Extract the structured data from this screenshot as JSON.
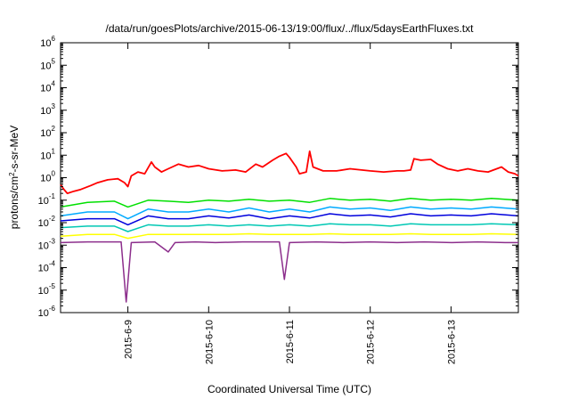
{
  "chart_data": {
    "type": "line",
    "title": "/data/run/goesPlots/archive/2015-06-13/19:00/flux/../flux/5daysEarthFluxes.txt",
    "xlabel": "Coordinated Universal Time (UTC)",
    "ylabel": {
      "prefix": "protons/cm",
      "sup": "2",
      "suffix": "-s-sr-MeV"
    },
    "xlim": [
      "2015-06-08 04:00",
      "2015-06-13 20:00"
    ],
    "x_ticks": [
      "2015-6-9",
      "2015-6-10",
      "2015-6-11",
      "2015-6-12",
      "2015-6-13"
    ],
    "yscale": "log",
    "ylim": [
      1e-06,
      1000000.0
    ],
    "y_ticks": [
      {
        "base": "10",
        "exp": "-6"
      },
      {
        "base": "10",
        "exp": "-5"
      },
      {
        "base": "10",
        "exp": "-4"
      },
      {
        "base": "10",
        "exp": "-3"
      },
      {
        "base": "10",
        "exp": "-2"
      },
      {
        "base": "10",
        "exp": "-1"
      },
      {
        "base": "10",
        "exp": "0"
      },
      {
        "base": "10",
        "exp": "1"
      },
      {
        "base": "10",
        "exp": "2"
      },
      {
        "base": "10",
        "exp": "3"
      },
      {
        "base": "10",
        "exp": "4"
      },
      {
        "base": "10",
        "exp": "5"
      },
      {
        "base": "10",
        "exp": "6"
      }
    ],
    "grid": false,
    "legend": "none",
    "series": [
      {
        "color": "#ff0000",
        "data": [
          [
            "2015-06-08 04:00",
            0.5
          ],
          [
            "2015-06-08 05:00",
            0.3
          ],
          [
            "2015-06-08 06:00",
            0.2
          ],
          [
            "2015-06-08 08:00",
            0.25
          ],
          [
            "2015-06-08 10:00",
            0.3
          ],
          [
            "2015-06-08 13:00",
            0.45
          ],
          [
            "2015-06-08 15:00",
            0.6
          ],
          [
            "2015-06-08 18:00",
            0.8
          ],
          [
            "2015-06-08 21:00",
            0.9
          ],
          [
            "2015-06-08 23:00",
            0.6
          ],
          [
            "2015-06-09 00:00",
            0.4
          ],
          [
            "2015-06-09 01:00",
            1.2
          ],
          [
            "2015-06-09 03:00",
            1.8
          ],
          [
            "2015-06-09 05:00",
            1.5
          ],
          [
            "2015-06-09 07:00",
            5.0
          ],
          [
            "2015-06-09 08:00",
            3.0
          ],
          [
            "2015-06-09 10:00",
            1.8
          ],
          [
            "2015-06-09 12:00",
            2.5
          ],
          [
            "2015-06-09 15:00",
            4.0
          ],
          [
            "2015-06-09 18:00",
            3.0
          ],
          [
            "2015-06-09 21:00",
            3.5
          ],
          [
            "2015-06-10 00:00",
            2.5
          ],
          [
            "2015-06-10 04:00",
            2.0
          ],
          [
            "2015-06-10 08:00",
            2.2
          ],
          [
            "2015-06-10 11:00",
            1.8
          ],
          [
            "2015-06-10 14:00",
            4.0
          ],
          [
            "2015-06-10 16:00",
            3.0
          ],
          [
            "2015-06-10 19:00",
            6.0
          ],
          [
            "2015-06-10 21:00",
            9.0
          ],
          [
            "2015-06-10 23:00",
            12.0
          ],
          [
            "2015-06-11 00:00",
            8.0
          ],
          [
            "2015-06-11 02:00",
            3.0
          ],
          [
            "2015-06-11 03:00",
            1.5
          ],
          [
            "2015-06-11 05:00",
            1.8
          ],
          [
            "2015-06-11 06:00",
            15.0
          ],
          [
            "2015-06-11 07:00",
            3.0
          ],
          [
            "2015-06-11 10:00",
            2.0
          ],
          [
            "2015-06-11 14:00",
            2.0
          ],
          [
            "2015-06-11 18:00",
            2.5
          ],
          [
            "2015-06-12 00:00",
            2.0
          ],
          [
            "2015-06-12 04:00",
            1.8
          ],
          [
            "2015-06-12 08:00",
            2.0
          ],
          [
            "2015-06-12 10:00",
            2.0
          ],
          [
            "2015-06-12 12:00",
            2.2
          ],
          [
            "2015-06-12 13:00",
            7.0
          ],
          [
            "2015-06-12 15:00",
            6.0
          ],
          [
            "2015-06-12 18:00",
            6.5
          ],
          [
            "2015-06-12 20:00",
            4.0
          ],
          [
            "2015-06-12 23:00",
            2.5
          ],
          [
            "2015-06-13 02:00",
            2.0
          ],
          [
            "2015-06-13 05:00",
            2.5
          ],
          [
            "2015-06-13 08:00",
            2.0
          ],
          [
            "2015-06-13 11:00",
            1.8
          ],
          [
            "2015-06-13 15:00",
            3.0
          ],
          [
            "2015-06-13 17:00",
            1.8
          ],
          [
            "2015-06-13 19:00",
            1.5
          ],
          [
            "2015-06-13 20:00",
            1.2
          ]
        ]
      },
      {
        "color": "#00e000",
        "data": [
          [
            "2015-06-08 04:00",
            0.05
          ],
          [
            "2015-06-08 12:00",
            0.08
          ],
          [
            "2015-06-08 20:00",
            0.09
          ],
          [
            "2015-06-09 00:00",
            0.05
          ],
          [
            "2015-06-09 06:00",
            0.1
          ],
          [
            "2015-06-09 12:00",
            0.09
          ],
          [
            "2015-06-09 18:00",
            0.08
          ],
          [
            "2015-06-10 00:00",
            0.1
          ],
          [
            "2015-06-10 06:00",
            0.09
          ],
          [
            "2015-06-10 12:00",
            0.11
          ],
          [
            "2015-06-10 18:00",
            0.09
          ],
          [
            "2015-06-11 00:00",
            0.1
          ],
          [
            "2015-06-11 06:00",
            0.08
          ],
          [
            "2015-06-11 12:00",
            0.12
          ],
          [
            "2015-06-11 18:00",
            0.1
          ],
          [
            "2015-06-12 00:00",
            0.11
          ],
          [
            "2015-06-12 06:00",
            0.09
          ],
          [
            "2015-06-12 12:00",
            0.12
          ],
          [
            "2015-06-12 18:00",
            0.1
          ],
          [
            "2015-06-13 00:00",
            0.11
          ],
          [
            "2015-06-13 06:00",
            0.1
          ],
          [
            "2015-06-13 12:00",
            0.12
          ],
          [
            "2015-06-13 20:00",
            0.1
          ]
        ]
      },
      {
        "color": "#00aaff",
        "data": [
          [
            "2015-06-08 04:00",
            0.02
          ],
          [
            "2015-06-08 12:00",
            0.03
          ],
          [
            "2015-06-08 20:00",
            0.03
          ],
          [
            "2015-06-09 00:00",
            0.015
          ],
          [
            "2015-06-09 06:00",
            0.04
          ],
          [
            "2015-06-09 12:00",
            0.03
          ],
          [
            "2015-06-09 18:00",
            0.03
          ],
          [
            "2015-06-10 00:00",
            0.04
          ],
          [
            "2015-06-10 06:00",
            0.03
          ],
          [
            "2015-06-10 12:00",
            0.045
          ],
          [
            "2015-06-10 18:00",
            0.03
          ],
          [
            "2015-06-11 00:00",
            0.04
          ],
          [
            "2015-06-11 06:00",
            0.03
          ],
          [
            "2015-06-11 12:00",
            0.05
          ],
          [
            "2015-06-11 18:00",
            0.04
          ],
          [
            "2015-06-12 00:00",
            0.045
          ],
          [
            "2015-06-12 06:00",
            0.035
          ],
          [
            "2015-06-12 12:00",
            0.05
          ],
          [
            "2015-06-12 18:00",
            0.04
          ],
          [
            "2015-06-13 00:00",
            0.045
          ],
          [
            "2015-06-13 06:00",
            0.04
          ],
          [
            "2015-06-13 12:00",
            0.05
          ],
          [
            "2015-06-13 20:00",
            0.04
          ]
        ]
      },
      {
        "color": "#0000dd",
        "data": [
          [
            "2015-06-08 04:00",
            0.012
          ],
          [
            "2015-06-08 12:00",
            0.015
          ],
          [
            "2015-06-08 20:00",
            0.015
          ],
          [
            "2015-06-09 00:00",
            0.008
          ],
          [
            "2015-06-09 06:00",
            0.02
          ],
          [
            "2015-06-09 12:00",
            0.015
          ],
          [
            "2015-06-09 18:00",
            0.015
          ],
          [
            "2015-06-10 00:00",
            0.02
          ],
          [
            "2015-06-10 06:00",
            0.016
          ],
          [
            "2015-06-10 12:00",
            0.022
          ],
          [
            "2015-06-10 18:00",
            0.015
          ],
          [
            "2015-06-11 00:00",
            0.02
          ],
          [
            "2015-06-11 06:00",
            0.016
          ],
          [
            "2015-06-11 12:00",
            0.025
          ],
          [
            "2015-06-11 18:00",
            0.02
          ],
          [
            "2015-06-12 00:00",
            0.022
          ],
          [
            "2015-06-12 06:00",
            0.018
          ],
          [
            "2015-06-12 12:00",
            0.025
          ],
          [
            "2015-06-12 18:00",
            0.02
          ],
          [
            "2015-06-13 00:00",
            0.022
          ],
          [
            "2015-06-13 06:00",
            0.02
          ],
          [
            "2015-06-13 12:00",
            0.025
          ],
          [
            "2015-06-13 20:00",
            0.02
          ]
        ]
      },
      {
        "color": "#00c8b4",
        "data": [
          [
            "2015-06-08 04:00",
            0.006
          ],
          [
            "2015-06-08 12:00",
            0.007
          ],
          [
            "2015-06-08 20:00",
            0.007
          ],
          [
            "2015-06-09 00:00",
            0.004
          ],
          [
            "2015-06-09 06:00",
            0.008
          ],
          [
            "2015-06-09 12:00",
            0.007
          ],
          [
            "2015-06-09 18:00",
            0.007
          ],
          [
            "2015-06-10 00:00",
            0.008
          ],
          [
            "2015-06-10 06:00",
            0.007
          ],
          [
            "2015-06-10 12:00",
            0.008
          ],
          [
            "2015-06-10 18:00",
            0.007
          ],
          [
            "2015-06-11 00:00",
            0.008
          ],
          [
            "2015-06-11 06:00",
            0.007
          ],
          [
            "2015-06-11 12:00",
            0.009
          ],
          [
            "2015-06-11 18:00",
            0.008
          ],
          [
            "2015-06-12 00:00",
            0.008
          ],
          [
            "2015-06-12 06:00",
            0.007
          ],
          [
            "2015-06-12 12:00",
            0.009
          ],
          [
            "2015-06-12 18:00",
            0.008
          ],
          [
            "2015-06-13 00:00",
            0.008
          ],
          [
            "2015-06-13 06:00",
            0.008
          ],
          [
            "2015-06-13 12:00",
            0.009
          ],
          [
            "2015-06-13 20:00",
            0.008
          ]
        ]
      },
      {
        "color": "#ffff00",
        "data": [
          [
            "2015-06-08 04:00",
            0.0025
          ],
          [
            "2015-06-08 12:00",
            0.003
          ],
          [
            "2015-06-08 20:00",
            0.003
          ],
          [
            "2015-06-09 00:00",
            0.002
          ],
          [
            "2015-06-09 06:00",
            0.003
          ],
          [
            "2015-06-09 12:00",
            0.003
          ],
          [
            "2015-06-09 18:00",
            0.003
          ],
          [
            "2015-06-10 00:00",
            0.003
          ],
          [
            "2015-06-10 06:00",
            0.003
          ],
          [
            "2015-06-10 12:00",
            0.0032
          ],
          [
            "2015-06-10 18:00",
            0.003
          ],
          [
            "2015-06-11 00:00",
            0.003
          ],
          [
            "2015-06-11 06:00",
            0.003
          ],
          [
            "2015-06-11 12:00",
            0.0032
          ],
          [
            "2015-06-11 18:00",
            0.003
          ],
          [
            "2015-06-12 00:00",
            0.003
          ],
          [
            "2015-06-12 06:00",
            0.003
          ],
          [
            "2015-06-12 12:00",
            0.0032
          ],
          [
            "2015-06-12 18:00",
            0.003
          ],
          [
            "2015-06-13 00:00",
            0.003
          ],
          [
            "2015-06-13 06:00",
            0.003
          ],
          [
            "2015-06-13 12:00",
            0.0032
          ],
          [
            "2015-06-13 20:00",
            0.003
          ]
        ]
      },
      {
        "color": "#8c2e8c",
        "data": [
          [
            "2015-06-08 04:00",
            0.0013
          ],
          [
            "2015-06-08 12:00",
            0.0014
          ],
          [
            "2015-06-08 20:00",
            0.0014
          ],
          [
            "2015-06-08 22:00",
            0.0014
          ],
          [
            "2015-06-08 23:30",
            3e-06
          ],
          [
            "2015-06-09 01:00",
            0.0013
          ],
          [
            "2015-06-09 08:00",
            0.0014
          ],
          [
            "2015-06-09 12:00",
            0.0005
          ],
          [
            "2015-06-09 14:00",
            0.0013
          ],
          [
            "2015-06-09 20:00",
            0.0014
          ],
          [
            "2015-06-10 02:00",
            0.0013
          ],
          [
            "2015-06-10 10:00",
            0.0014
          ],
          [
            "2015-06-10 18:00",
            0.0014
          ],
          [
            "2015-06-10 21:00",
            0.0014
          ],
          [
            "2015-06-10 22:30",
            3e-05
          ],
          [
            "2015-06-11 00:00",
            0.0013
          ],
          [
            "2015-06-11 08:00",
            0.0014
          ],
          [
            "2015-06-11 16:00",
            0.0013
          ],
          [
            "2015-06-12 00:00",
            0.0014
          ],
          [
            "2015-06-12 08:00",
            0.0013
          ],
          [
            "2015-06-12 16:00",
            0.0014
          ],
          [
            "2015-06-13 00:00",
            0.0013
          ],
          [
            "2015-06-13 08:00",
            0.0014
          ],
          [
            "2015-06-13 16:00",
            0.0013
          ],
          [
            "2015-06-13 20:00",
            0.0013
          ]
        ]
      }
    ]
  }
}
